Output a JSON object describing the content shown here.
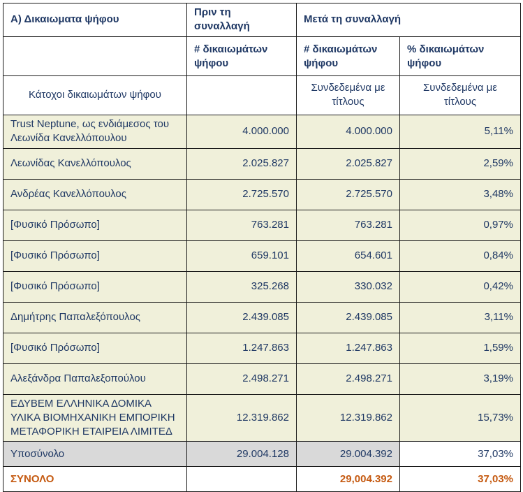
{
  "table": {
    "header": {
      "title": "Α) Δικαιωματα ψήφου",
      "before_group": "Πριν τη συναλλαγή",
      "after_group": "Μετά τη συναλλαγή",
      "before_count_label": "# δικαιωμάτων ψήφου",
      "after_count_label": "# δικαιωμάτων ψήφου",
      "after_pct_label": "% δικαιωμάτων ψήφου",
      "holders_label": "Κάτοχοι δικαιωμάτων ψήφου",
      "linked_securities_count": "Συνδεδεμένα με τίτλους",
      "linked_securities_pct": "Συνδεδεμένα με τίτλους"
    },
    "rows": [
      {
        "name": "Trust Neptune, ως ενδιάμεσος του Λεωνίδα Κανελλόπουλου",
        "before": "4.000.000",
        "after": "4.000.000",
        "pct": "5,11%"
      },
      {
        "name": "Λεωνίδας Κανελλόπουλος",
        "before": "2.025.827",
        "after": "2.025.827",
        "pct": "2,59%"
      },
      {
        "name": "Ανδρέας Κανελλόπουλος",
        "before": "2.725.570",
        "after": "2.725.570",
        "pct": "3,48%"
      },
      {
        "name": "[Φυσικό Πρόσωπο]",
        "before": "763.281",
        "after": "763.281",
        "pct": "0,97%"
      },
      {
        "name": "[Φυσικό Πρόσωπο]",
        "before": "659.101",
        "after": "654.601",
        "pct": "0,84%"
      },
      {
        "name": "[Φυσικό Πρόσωπο]",
        "before": "325.268",
        "after": "330.032",
        "pct": "0,42%"
      },
      {
        "name": "Δημήτρης Παπαλεξόπουλος",
        "before": "2.439.085",
        "after": "2.439.085",
        "pct": "3,11%"
      },
      {
        "name": "[Φυσικό Πρόσωπο]",
        "before": "1.247.863",
        "after": "1.247.863",
        "pct": "1,59%"
      },
      {
        "name": "Αλεξάνδρα Παπαλεξοπούλου",
        "before": "2.498.271",
        "after": "2.498.271",
        "pct": "3,19%"
      },
      {
        "name": "ΕΔΥΒΕΜ ΕΛΛΗΝΙΚΑ ΔΟΜΙΚΑ ΥΛΙΚΑ ΒΙΟΜΗΧΑΝΙΚΗ ΕΜΠΟΡΙΚΗ ΜΕΤΑΦΟΡΙΚΗ ΕΤΑΙΡΕΙΑ ΛΙΜΙΤΕΔ",
        "before": "12.319.862",
        "after": "12.319.862",
        "pct": "15,73%"
      }
    ],
    "subtotal": {
      "name": "Υποσύνολο",
      "before": "29.004.128",
      "after": "29.004.392",
      "pct": "37,03%"
    },
    "total": {
      "name": "ΣΥΝΟΛΟ",
      "before": "",
      "after": "29,004.392",
      "pct": "37,03%"
    }
  },
  "colors": {
    "header_navy": "#1f3864",
    "accent_orange": "#c55a11",
    "data_row_bg": "#f0f0da",
    "subtotal_bg": "#d9d9d9",
    "border": "#1a1a1a"
  }
}
